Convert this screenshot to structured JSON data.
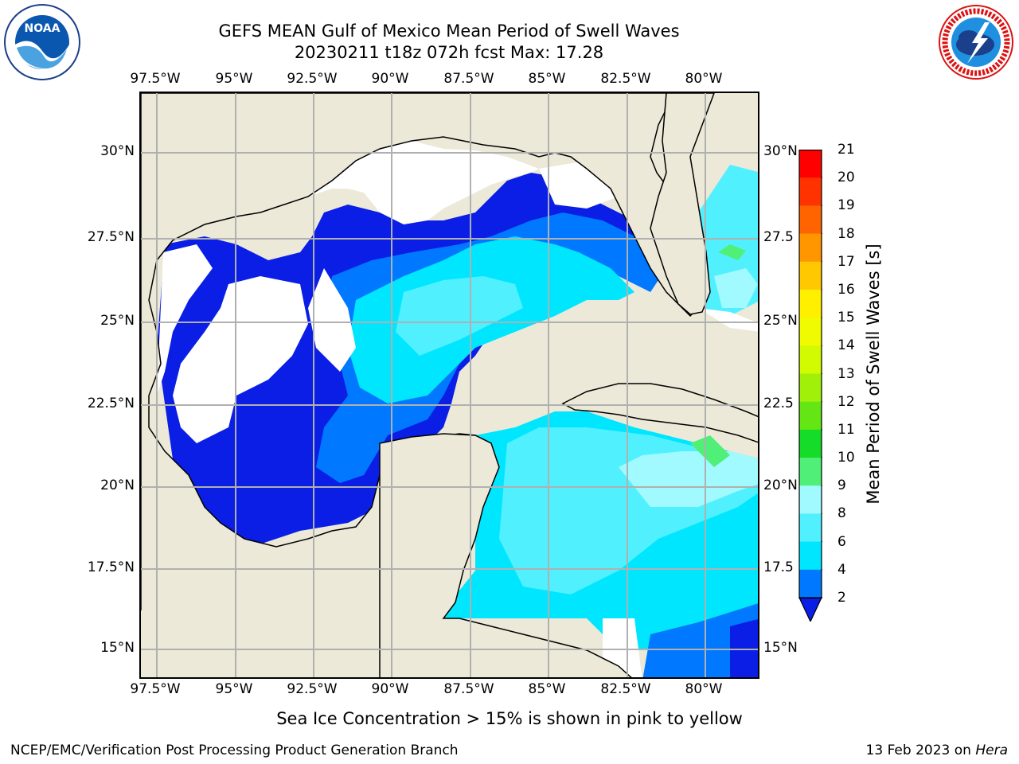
{
  "title": {
    "line1": "GEFS MEAN Gulf of Mexico Mean Period of Swell Waves",
    "line2": "20230211 t18z 072h fcst   Max: 17.28"
  },
  "axes": {
    "lon_labels": [
      "97.5°W",
      "95°W",
      "92.5°W",
      "90°W",
      "87.5°W",
      "85°W",
      "82.5°W",
      "80°W"
    ],
    "lat_labels": [
      "30°N",
      "27.5°N",
      "25°N",
      "22.5°N",
      "20°N",
      "17.5°N",
      "15°N"
    ],
    "lat_labels_right": [
      "30°N",
      "27.5",
      "25°N",
      "22.5",
      "20°N",
      "17.5",
      "15°N"
    ]
  },
  "colorbar": {
    "title": "Mean Period of Swell Waves [s]",
    "ticks": [
      "2",
      "4",
      "6",
      "8",
      "9",
      "10",
      "11",
      "12",
      "13",
      "14",
      "15",
      "16",
      "17",
      "18",
      "19",
      "20",
      "21"
    ],
    "colors": [
      "#0a1ee6",
      "#0078ff",
      "#00e6ff",
      "#50f0ff",
      "#a0faff",
      "#50f078",
      "#14dc28",
      "#64e614",
      "#a0f00a",
      "#d2fa00",
      "#f0fa00",
      "#fff000",
      "#ffc800",
      "#ff9600",
      "#ff6400",
      "#ff3200",
      "#ff0000"
    ]
  },
  "map": {
    "land_color": "#ece9d8",
    "legend_colors": {
      "no_data": "#ffffff",
      "period_2_4": "#0a1ee6",
      "period_4_6": "#0078ff",
      "period_6_8": "#00e6ff",
      "period_8_9": "#50f0ff",
      "period_9_10": "#a0faff",
      "period_10_11": "#50f078"
    }
  },
  "footer": {
    "ice_note": "Sea Ice Concentration > 15% is shown in pink to yellow",
    "credit": "NCEP/EMC/Verification Post Processing Product Generation Branch",
    "date": "13 Feb 2023 on",
    "machine": "Hera"
  },
  "logos": {
    "left": "NOAA",
    "right": "NATIONAL WEATHER SERVICE"
  }
}
